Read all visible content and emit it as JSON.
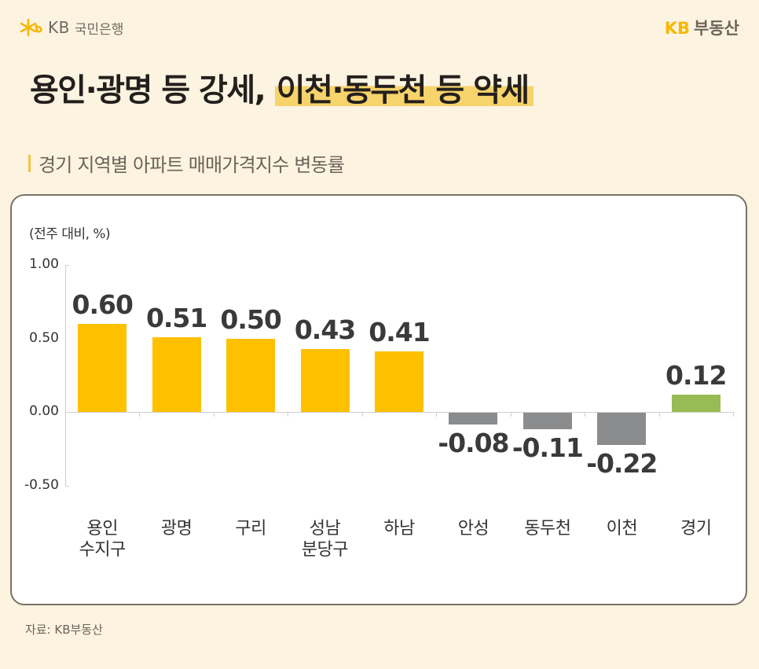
{
  "header": {
    "bank_logo_kb": "KB",
    "bank_logo_name": "국민은행",
    "brand_kb": "KB",
    "brand_name": "부동산",
    "title_part1": "용인·광명 등 강세,",
    "title_part2": "이천·동두천 등 약세",
    "subtitle": "경기 지역별 아파트 매매가격지수 변동률",
    "highlight_color": "#f7d36c"
  },
  "chart": {
    "unit_label": "(전주 대비, %)",
    "source": "자료: KB부동산"
  },
  "chart_data": {
    "type": "bar",
    "title": "경기 지역별 아파트 매매가격지수 변동률",
    "ylabel": "(전주 대비, %)",
    "xlabel": "",
    "categories": [
      "용인\n수지구",
      "광명",
      "구리",
      "성남\n분당구",
      "하남",
      "안성",
      "동두천",
      "이천",
      "경기"
    ],
    "values": [
      0.6,
      0.51,
      0.5,
      0.43,
      0.41,
      -0.08,
      -0.11,
      -0.22,
      0.12
    ],
    "value_labels": [
      "0.60",
      "0.51",
      "0.50",
      "0.43",
      "0.41",
      "-0.08",
      "-0.11",
      "-0.22",
      "0.12"
    ],
    "colors": [
      "#ffc000",
      "#ffc000",
      "#ffc000",
      "#ffc000",
      "#ffc000",
      "#8a8c8e",
      "#8a8c8e",
      "#8a8c8e",
      "#99bb55"
    ],
    "yticks": [
      "1.00",
      "0.50",
      "0.00",
      "-0.50"
    ],
    "ylim": [
      -0.5,
      1.0
    ],
    "grid": false,
    "legend": null
  }
}
